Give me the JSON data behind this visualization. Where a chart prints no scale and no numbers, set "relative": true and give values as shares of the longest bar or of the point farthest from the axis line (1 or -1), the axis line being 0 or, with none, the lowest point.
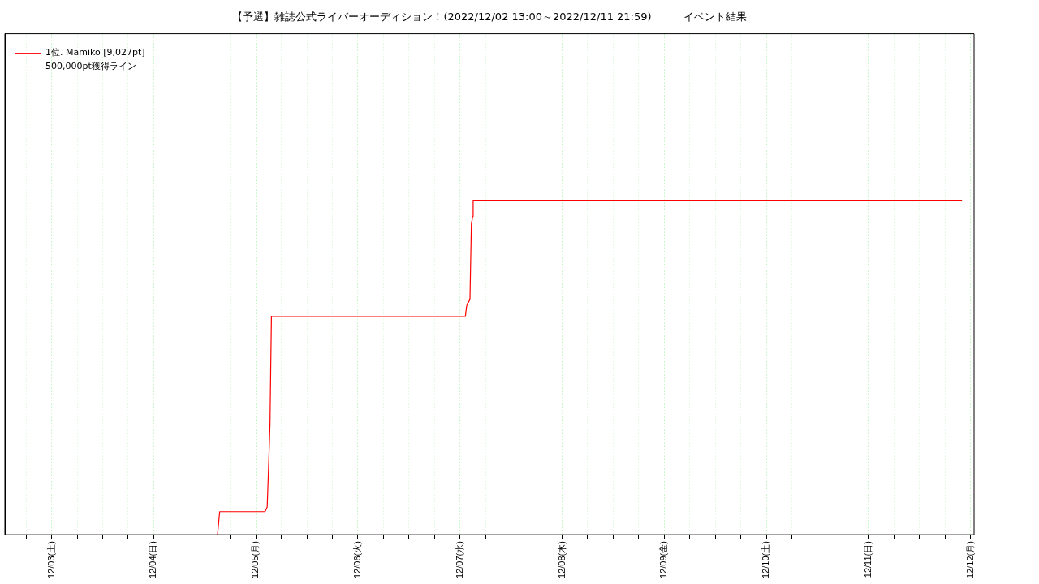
{
  "chart_data": {
    "type": "line",
    "title": "【予選】雑誌公式ライバーオーディション！(2022/12/02 13:00～2022/12/11 21:59)　　　イベント結果",
    "relative": true,
    "x": [
      "2022-12-04T15:00",
      "2022-12-04T15:30",
      "2022-12-05T02:10",
      "2022-12-05T02:40",
      "2022-12-05T03:00",
      "2022-12-05T03:20",
      "2022-12-05T03:40",
      "2022-12-07T01:15",
      "2022-12-07T01:35",
      "2022-12-07T02:20",
      "2022-12-07T02:40",
      "2022-12-07T03:00",
      "2022-12-07T03:05",
      "2022-12-11T22:00"
    ],
    "series": [
      {
        "name": "1位. Mamiko [9,027pt]",
        "color": "#ff0000",
        "line_style": "solid",
        "values": [
          0,
          0.069,
          0.069,
          0.083,
          0.203,
          0.332,
          0.654,
          0.654,
          0.687,
          0.705,
          0.931,
          0.954,
          1,
          1
        ]
      },
      {
        "name": "500,000pt獲得ライン",
        "color": "#ff9999",
        "line_style": "dotted",
        "values": [
          null,
          null,
          null,
          null,
          null,
          null,
          null,
          null,
          null,
          null,
          null,
          null,
          null,
          null
        ]
      }
    ],
    "xlim": [
      "2022-12-02T13:00",
      "2022-12-12T00:50"
    ],
    "xticks": [
      {
        "value": "2022-12-02T18:00",
        "label": null
      },
      {
        "value": "2022-12-03T00:00",
        "label": "12/03(土)"
      },
      {
        "value": "2022-12-03T06:00",
        "label": null
      },
      {
        "value": "2022-12-03T12:00",
        "label": null
      },
      {
        "value": "2022-12-03T18:00",
        "label": null
      },
      {
        "value": "2022-12-04T00:00",
        "label": "12/04(日)"
      },
      {
        "value": "2022-12-04T06:00",
        "label": null
      },
      {
        "value": "2022-12-04T12:00",
        "label": null
      },
      {
        "value": "2022-12-04T18:00",
        "label": null
      },
      {
        "value": "2022-12-05T00:00",
        "label": "12/05(月)"
      },
      {
        "value": "2022-12-05T06:00",
        "label": null
      },
      {
        "value": "2022-12-05T12:00",
        "label": null
      },
      {
        "value": "2022-12-05T18:00",
        "label": null
      },
      {
        "value": "2022-12-06T00:00",
        "label": "12/06(火)"
      },
      {
        "value": "2022-12-06T06:00",
        "label": null
      },
      {
        "value": "2022-12-06T12:00",
        "label": null
      },
      {
        "value": "2022-12-06T18:00",
        "label": null
      },
      {
        "value": "2022-12-07T00:00",
        "label": "12/07(水)"
      },
      {
        "value": "2022-12-07T06:00",
        "label": null
      },
      {
        "value": "2022-12-07T12:00",
        "label": null
      },
      {
        "value": "2022-12-07T18:00",
        "label": null
      },
      {
        "value": "2022-12-08T00:00",
        "label": "12/08(木)"
      },
      {
        "value": "2022-12-08T06:00",
        "label": null
      },
      {
        "value": "2022-12-08T12:00",
        "label": null
      },
      {
        "value": "2022-12-08T18:00",
        "label": null
      },
      {
        "value": "2022-12-09T00:00",
        "label": "12/09(金)"
      },
      {
        "value": "2022-12-09T06:00",
        "label": null
      },
      {
        "value": "2022-12-09T12:00",
        "label": null
      },
      {
        "value": "2022-12-09T18:00",
        "label": null
      },
      {
        "value": "2022-12-10T00:00",
        "label": "12/10(土)"
      },
      {
        "value": "2022-12-10T06:00",
        "label": null
      },
      {
        "value": "2022-12-10T12:00",
        "label": null
      },
      {
        "value": "2022-12-10T18:00",
        "label": null
      },
      {
        "value": "2022-12-11T00:00",
        "label": "12/11(日)"
      },
      {
        "value": "2022-12-11T06:00",
        "label": null
      },
      {
        "value": "2022-12-11T12:00",
        "label": null
      },
      {
        "value": "2022-12-11T18:00",
        "label": null
      },
      {
        "value": "2022-12-12T00:00",
        "label": "12/12(月)"
      }
    ],
    "grid": "x",
    "legend": "top left",
    "marker": "none"
  }
}
